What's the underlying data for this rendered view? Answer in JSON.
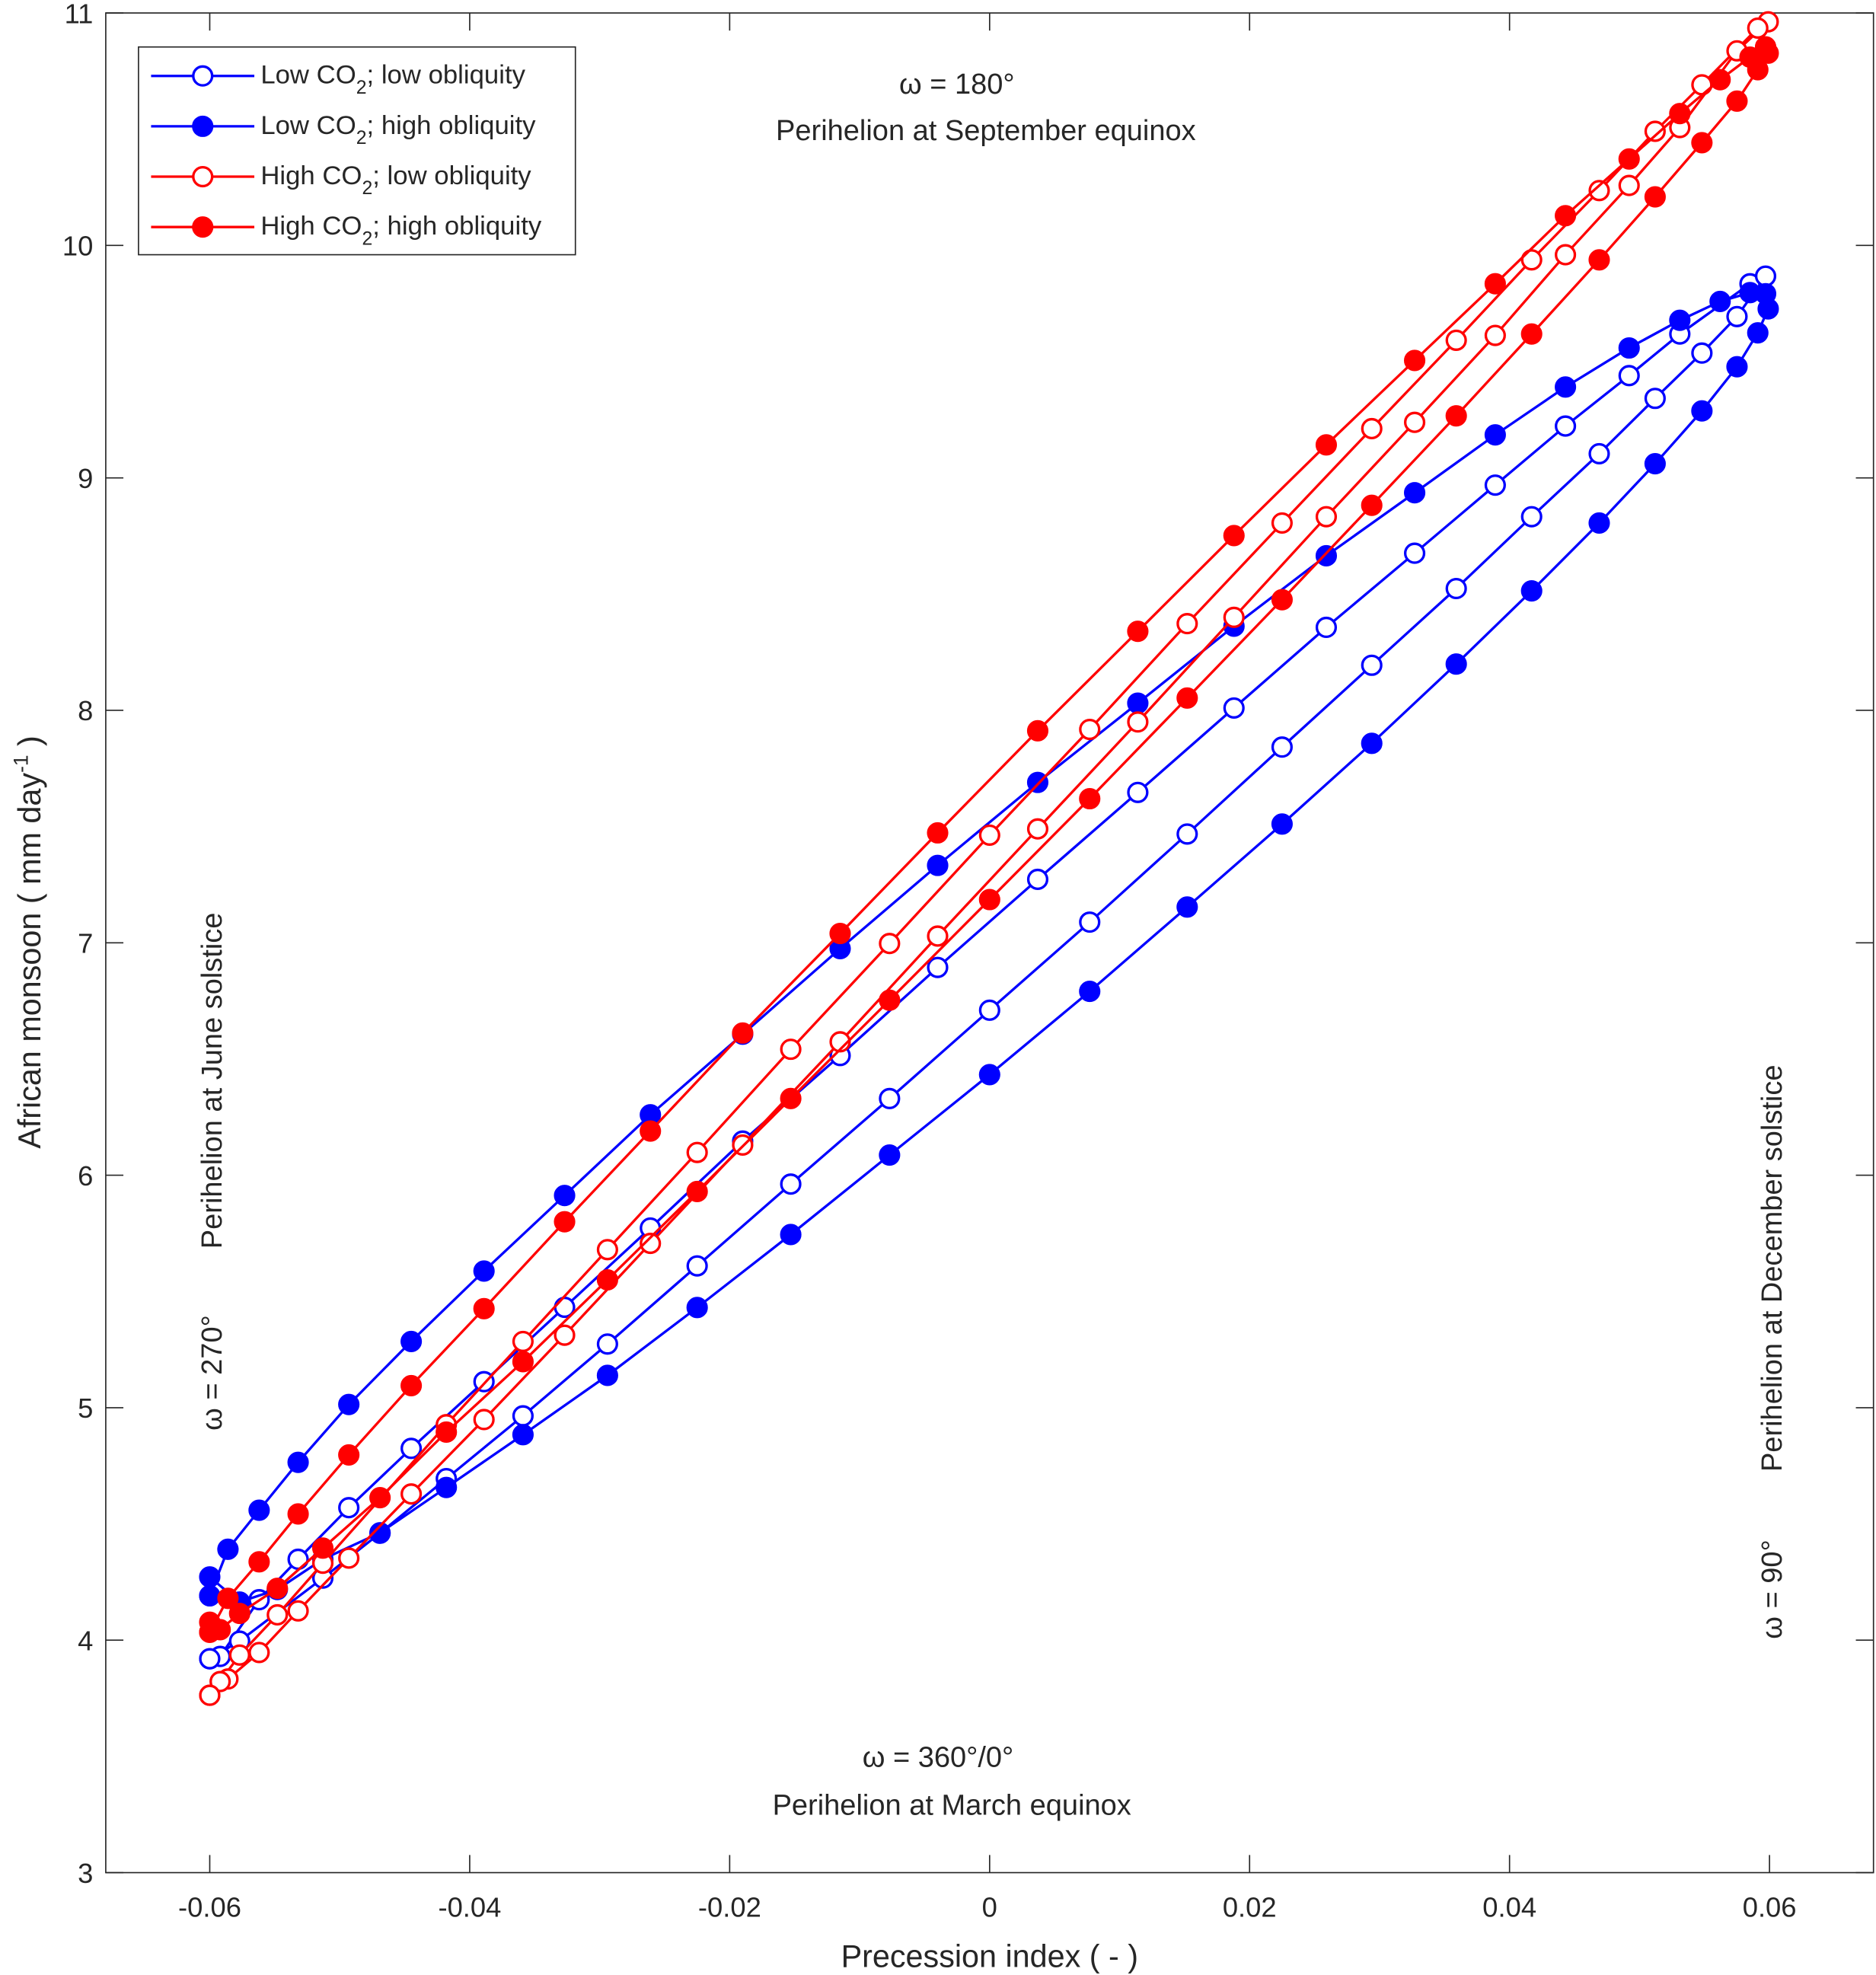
{
  "chart_data": {
    "type": "line",
    "xlabel": "Precession index ( - )",
    "ylabel_main": "African monsoon ( mm day",
    "ylabel_sup": "-1",
    "ylabel_end": " )",
    "xlim": [
      -0.068,
      0.068
    ],
    "ylim": [
      3,
      11
    ],
    "xticks": [
      -0.06,
      -0.04,
      -0.02,
      0,
      0.02,
      0.04,
      0.06
    ],
    "xtick_labels": [
      "-0.06",
      "-0.04",
      "-0.02",
      "0",
      "0.02",
      "0.04",
      "0.06"
    ],
    "yticks": [
      3,
      4,
      5,
      6,
      7,
      8,
      9,
      10,
      11
    ],
    "ytick_labels": [
      "3",
      "4",
      "5",
      "6",
      "7",
      "8",
      "9",
      "10",
      "11"
    ],
    "grid": false,
    "legend_position": "top-left",
    "annotations": {
      "top_omega": "ω = 180°",
      "top_text": "Perihelion at September equinox",
      "bottom_omega": "ω = 360°/0°",
      "bottom_text": "Perihelion at March equinox",
      "left_omega": "ω = 270°",
      "left_text": "Perihelion at June solstice",
      "right_omega": "ω = 90°",
      "right_text": "Perihelion at December solstice"
    },
    "series": [
      {
        "name_a": "Low CO",
        "name_sub": "2",
        "name_b": "; low obliquity",
        "color": "#0000ff",
        "marker": "open",
        "points": [
          [
            -0.06,
            3.92
          ],
          [
            -0.0592,
            3.93
          ],
          [
            -0.0562,
            4.174
          ],
          [
            -0.0532,
            4.348
          ],
          [
            -0.0493,
            4.57
          ],
          [
            -0.0445,
            4.825
          ],
          [
            -0.0389,
            5.112
          ],
          [
            -0.0327,
            5.432
          ],
          [
            -0.0261,
            5.773
          ],
          [
            -0.019,
            6.147
          ],
          [
            -0.0115,
            6.515
          ],
          [
            -0.004,
            6.894
          ],
          [
            0.0037,
            7.273
          ],
          [
            0.0114,
            7.647
          ],
          [
            0.0188,
            8.01
          ],
          [
            0.0259,
            8.357
          ],
          [
            0.0327,
            8.676
          ],
          [
            0.0389,
            8.969
          ],
          [
            0.0443,
            9.223
          ],
          [
            0.0492,
            9.44
          ],
          [
            0.0531,
            9.619
          ],
          [
            0.0585,
            9.835
          ],
          [
            0.0597,
            9.868
          ],
          [
            0.0575,
            9.694
          ],
          [
            0.0548,
            9.537
          ],
          [
            0.0512,
            9.342
          ],
          [
            0.0469,
            9.104
          ],
          [
            0.0417,
            8.833
          ],
          [
            0.0359,
            8.524
          ],
          [
            0.0294,
            8.194
          ],
          [
            0.0225,
            7.842
          ],
          [
            0.0152,
            7.468
          ],
          [
            0.0077,
            7.089
          ],
          [
            0,
            6.71
          ],
          [
            -0.0077,
            6.33
          ],
          [
            -0.0153,
            5.962
          ],
          [
            -0.0225,
            5.61
          ],
          [
            -0.0294,
            5.274
          ],
          [
            -0.0359,
            4.965
          ],
          [
            -0.0418,
            4.695
          ],
          [
            -0.0469,
            4.46
          ],
          [
            -0.0513,
            4.267
          ],
          [
            -0.0577,
            3.996
          ],
          [
            -0.06,
            3.92
          ]
        ]
      },
      {
        "name_a": "Low CO",
        "name_sub": "2",
        "name_b": "; high obliquity",
        "color": "#0000ff",
        "marker": "filled",
        "points": [
          [
            -0.06,
            4.191
          ],
          [
            -0.0586,
            4.391
          ],
          [
            -0.0562,
            4.559
          ],
          [
            -0.0532,
            4.765
          ],
          [
            -0.0493,
            5.014
          ],
          [
            -0.0445,
            5.285
          ],
          [
            -0.0389,
            5.588
          ],
          [
            -0.0327,
            5.913
          ],
          [
            -0.0261,
            6.26
          ],
          [
            -0.019,
            6.607
          ],
          [
            -0.0115,
            6.975
          ],
          [
            -0.004,
            7.333
          ],
          [
            0.0037,
            7.69
          ],
          [
            0.0114,
            8.031
          ],
          [
            0.0188,
            8.362
          ],
          [
            0.0259,
            8.665
          ],
          [
            0.0327,
            8.936
          ],
          [
            0.0389,
            9.185
          ],
          [
            0.0443,
            9.391
          ],
          [
            0.0492,
            9.559
          ],
          [
            0.0531,
            9.678
          ],
          [
            0.0562,
            9.759
          ],
          [
            0.0585,
            9.797
          ],
          [
            0.0597,
            9.792
          ],
          [
            0.0599,
            9.727
          ],
          [
            0.0591,
            9.624
          ],
          [
            0.0575,
            9.478
          ],
          [
            0.0548,
            9.288
          ],
          [
            0.0512,
            9.061
          ],
          [
            0.0469,
            8.806
          ],
          [
            0.0417,
            8.514
          ],
          [
            0.0359,
            8.199
          ],
          [
            0.0294,
            7.858
          ],
          [
            0.0225,
            7.511
          ],
          [
            0.0152,
            7.154
          ],
          [
            0.0077,
            6.791
          ],
          [
            0,
            6.433
          ],
          [
            -0.0077,
            6.087
          ],
          [
            -0.0153,
            5.745
          ],
          [
            -0.0225,
            5.431
          ],
          [
            -0.0294,
            5.139
          ],
          [
            -0.0359,
            4.884
          ],
          [
            -0.0418,
            4.657
          ],
          [
            -0.0469,
            4.462
          ],
          [
            -0.0513,
            4.348
          ],
          [
            -0.0548,
            4.218
          ],
          [
            -0.0577,
            4.164
          ],
          [
            -0.06,
            4.272
          ],
          [
            -0.06,
            4.191
          ]
        ]
      },
      {
        "name_a": "High  CO",
        "name_sub": "2",
        "name_b": "; low obliquity",
        "color": "#ff0000",
        "marker": "open",
        "points": [
          [
            -0.06,
            3.763
          ],
          [
            -0.0586,
            3.833
          ],
          [
            -0.0562,
            3.947
          ],
          [
            -0.0532,
            4.126
          ],
          [
            -0.0493,
            4.353
          ],
          [
            -0.0445,
            4.629
          ],
          [
            -0.0389,
            4.949
          ],
          [
            -0.0327,
            5.312
          ],
          [
            -0.0261,
            5.707
          ],
          [
            -0.019,
            6.13
          ],
          [
            -0.0115,
            6.574
          ],
          [
            -0.004,
            7.029
          ],
          [
            0.0037,
            7.49
          ],
          [
            0.0114,
            7.95
          ],
          [
            0.0188,
            8.4
          ],
          [
            0.0259,
            8.833
          ],
          [
            0.0327,
            9.239
          ],
          [
            0.0389,
            9.613
          ],
          [
            0.0443,
            9.96
          ],
          [
            0.0492,
            10.258
          ],
          [
            0.0531,
            10.507
          ],
          [
            0.0575,
            10.837
          ],
          [
            0.0599,
            10.962
          ],
          [
            0.0591,
            10.935
          ],
          [
            0.0548,
            10.691
          ],
          [
            0.0512,
            10.491
          ],
          [
            0.0469,
            10.236
          ],
          [
            0.0417,
            9.938
          ],
          [
            0.0359,
            9.592
          ],
          [
            0.0294,
            9.212
          ],
          [
            0.0225,
            8.806
          ],
          [
            0.0152,
            8.373
          ],
          [
            0.0077,
            7.918
          ],
          [
            0,
            7.463
          ],
          [
            -0.0077,
            6.997
          ],
          [
            -0.0153,
            6.542
          ],
          [
            -0.0225,
            6.098
          ],
          [
            -0.0294,
            5.68
          ],
          [
            -0.0359,
            5.285
          ],
          [
            -0.0418,
            4.927
          ],
          [
            -0.0513,
            4.331
          ],
          [
            -0.0548,
            4.109
          ],
          [
            -0.0577,
            3.936
          ],
          [
            -0.0592,
            3.822
          ],
          [
            -0.06,
            3.763
          ]
        ]
      },
      {
        "name_a": "High  CO",
        "name_sub": "2",
        "name_b": "; high obliquity",
        "color": "#ff0000",
        "marker": "filled",
        "points": [
          [
            -0.06,
            4.034
          ],
          [
            -0.0586,
            4.18
          ],
          [
            -0.0562,
            4.337
          ],
          [
            -0.0532,
            4.543
          ],
          [
            -0.0493,
            4.797
          ],
          [
            -0.0445,
            5.095
          ],
          [
            -0.0389,
            5.426
          ],
          [
            -0.0327,
            5.8
          ],
          [
            -0.0261,
            6.19
          ],
          [
            -0.019,
            6.612
          ],
          [
            -0.0115,
            7.04
          ],
          [
            -0.004,
            7.473
          ],
          [
            0.0037,
            7.912
          ],
          [
            0.0114,
            8.34
          ],
          [
            0.0188,
            8.752
          ],
          [
            0.0259,
            9.142
          ],
          [
            0.0327,
            9.505
          ],
          [
            0.0389,
            9.835
          ],
          [
            0.0443,
            10.128
          ],
          [
            0.0492,
            10.372
          ],
          [
            0.0531,
            10.567
          ],
          [
            0.0562,
            10.713
          ],
          [
            0.0585,
            10.81
          ],
          [
            0.0597,
            10.854
          ],
          [
            0.0599,
            10.827
          ],
          [
            0.0591,
            10.756
          ],
          [
            0.0575,
            10.621
          ],
          [
            0.0548,
            10.442
          ],
          [
            0.0512,
            10.209
          ],
          [
            0.0469,
            9.938
          ],
          [
            0.0417,
            9.619
          ],
          [
            0.0359,
            9.267
          ],
          [
            0.0294,
            8.882
          ],
          [
            0.0225,
            8.476
          ],
          [
            0.0152,
            8.053
          ],
          [
            0.0077,
            7.62
          ],
          [
            0,
            7.186
          ],
          [
            -0.0077,
            6.753
          ],
          [
            -0.0153,
            6.33
          ],
          [
            -0.0225,
            5.93
          ],
          [
            -0.0294,
            5.55
          ],
          [
            -0.0359,
            5.198
          ],
          [
            -0.0418,
            4.895
          ],
          [
            -0.0469,
            4.613
          ],
          [
            -0.0513,
            4.396
          ],
          [
            -0.0548,
            4.223
          ],
          [
            -0.0577,
            4.115
          ],
          [
            -0.0592,
            4.045
          ],
          [
            -0.06,
            4.077
          ],
          [
            -0.06,
            4.034
          ]
        ]
      }
    ]
  }
}
